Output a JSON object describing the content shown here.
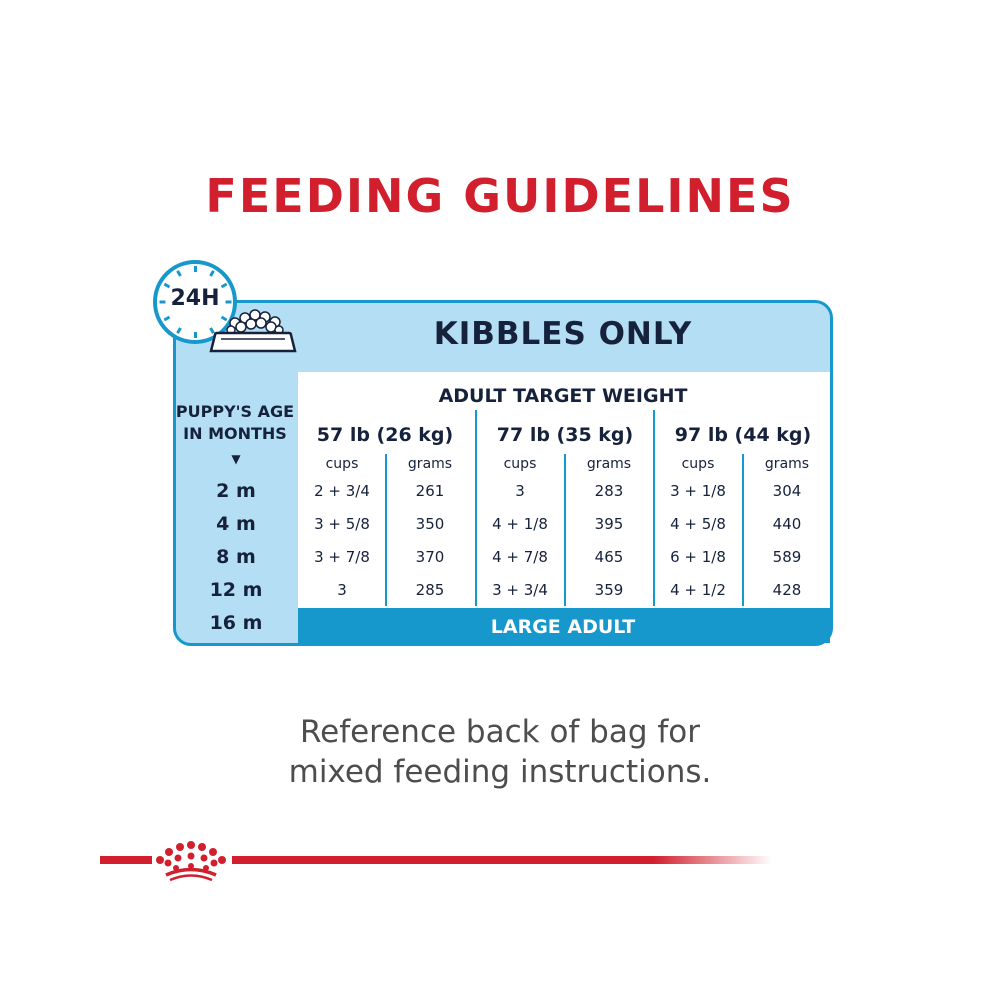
{
  "title": "FEEDING GUIDELINES",
  "badge": "24H",
  "table": {
    "heading": "KIBBLES ONLY",
    "target_weight_label": "ADULT TARGET WEIGHT",
    "age_label_line1": "PUPPY'S AGE",
    "age_label_line2": "IN MONTHS",
    "age_arrow": "▼",
    "weights": [
      "57 lb (26 kg)",
      "77 lb (35 kg)",
      "97 lb (44 kg)"
    ],
    "unit_cups": "cups",
    "unit_grams": "grams",
    "ages": [
      "2 m",
      "4 m",
      "8 m",
      "12 m",
      "16 m"
    ],
    "rows": [
      [
        "2 + 3/4",
        "261",
        "3",
        "283",
        "3 + 1/8",
        "304"
      ],
      [
        "3 + 5/8",
        "350",
        "4 + 1/8",
        "395",
        "4 + 5/8",
        "440"
      ],
      [
        "3 + 7/8",
        "370",
        "4 + 7/8",
        "465",
        "6 + 1/8",
        "589"
      ],
      [
        "3",
        "285",
        "3 + 3/4",
        "359",
        "4 + 1/2",
        "428"
      ]
    ],
    "final_row_label": "LARGE ADULT"
  },
  "reference_line1": "Reference back of bag for",
  "reference_line2": "mixed feeding instructions.",
  "colors": {
    "brand_red": "#d11f2d",
    "accent_blue": "#1798cc",
    "panel_blue": "#b4def3",
    "text_navy": "#16223c"
  },
  "icons": [
    "clock-icon",
    "food-bowl-icon",
    "royal-canin-crown-icon"
  ]
}
